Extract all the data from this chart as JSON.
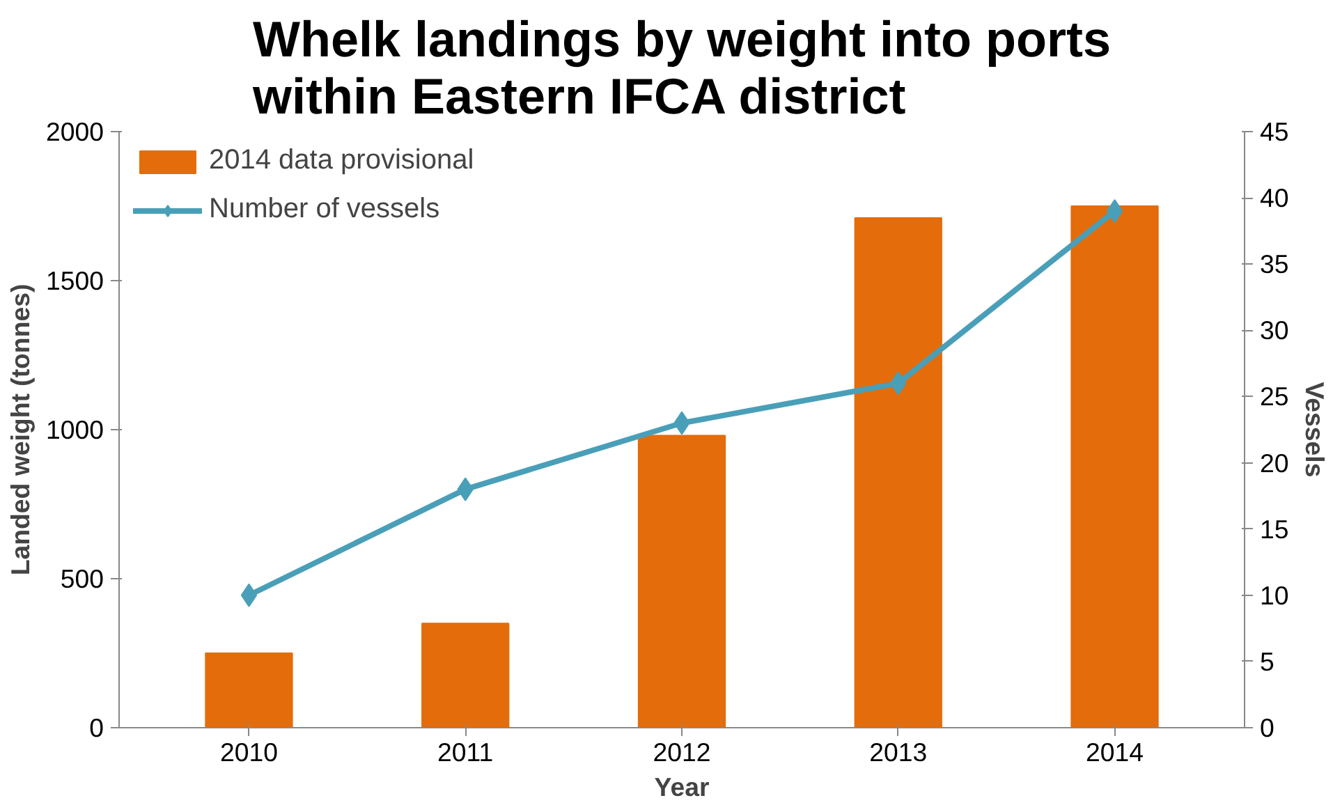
{
  "chart_data": {
    "type": "bar",
    "title": "Whelk landings by weight into ports within Eastern IFCA district",
    "xlabel": "Year",
    "ylabel": "Landed weight (tonnes)",
    "y2label": "Vessels",
    "categories": [
      "2010",
      "2011",
      "2012",
      "2013",
      "2014"
    ],
    "series": [
      {
        "name": "2014 data provisional",
        "color": "#e46c0a",
        "values": [
          250,
          350,
          980,
          1710,
          1750
        ]
      },
      {
        "name": "Number of vessels",
        "type": "line",
        "axis": "y2",
        "color": "#4a9fb8",
        "marker": "diamond",
        "values": [
          10,
          18,
          23,
          26,
          39
        ]
      }
    ],
    "ylim": [
      0,
      2000
    ],
    "yticks": [
      0,
      500,
      1000,
      1500,
      2000
    ],
    "y2lim": [
      0,
      45
    ],
    "y2ticks": [
      0,
      5,
      10,
      15,
      20,
      25,
      30,
      35,
      40,
      45
    ],
    "grid": false,
    "legend": "top left"
  }
}
